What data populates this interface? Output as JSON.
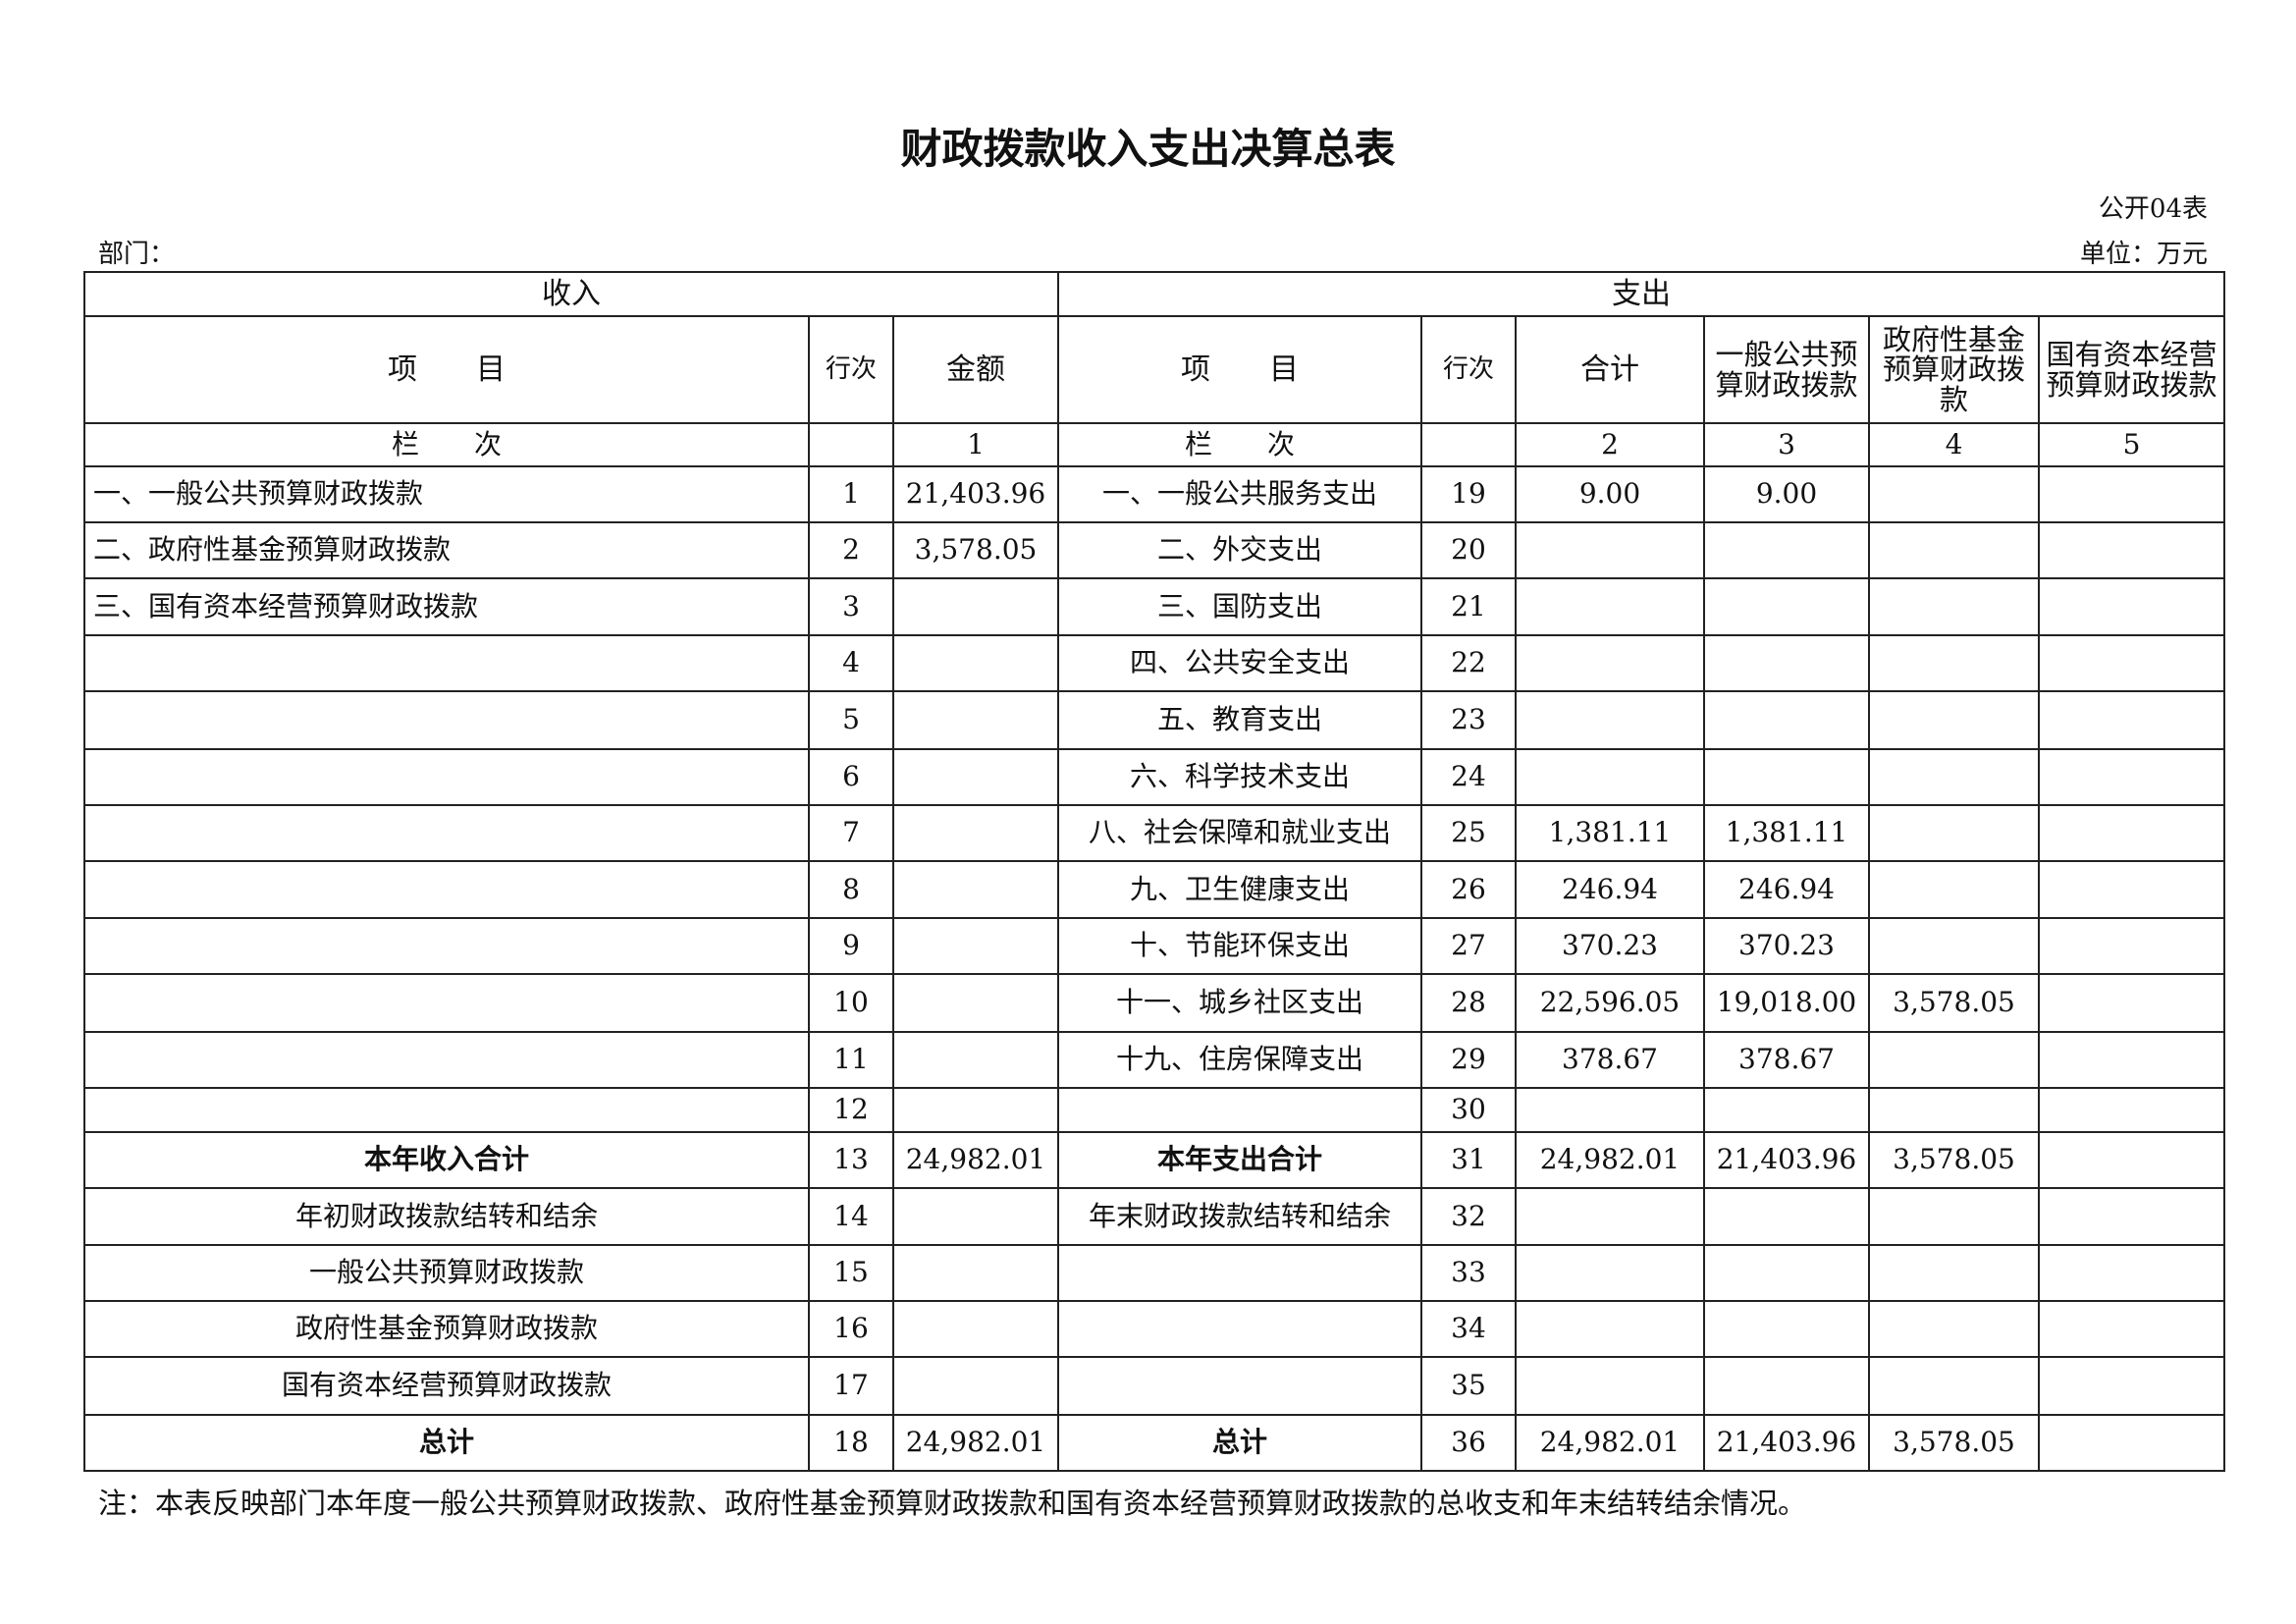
{
  "title": "财政拨款收入支出决算总表",
  "form_no": "公开04表",
  "dept_label": "部门：",
  "unit_label": "单位：万元",
  "header": {
    "income": "收入",
    "expense": "支出",
    "item": "项　　目",
    "row_no": "行次",
    "amount": "金额",
    "total": "合计",
    "general": "一般公共预算财政拨款",
    "gov_fund": "政府性基金预算财政拨款",
    "state_capital": "国有资本经营预算财政拨款",
    "col_label": "栏　　次",
    "col1": "1",
    "col2": "2",
    "col3": "3",
    "col4": "4",
    "col5": "5"
  },
  "rows": [
    {
      "in_item": "一、一般公共预算财政拨款",
      "in_no": "1",
      "in_amt": "21,403.96",
      "ex_item": "一、一般公共服务支出",
      "ex_no": "19",
      "total": "9.00",
      "general": "9.00",
      "gov": "",
      "cap": ""
    },
    {
      "in_item": "二、政府性基金预算财政拨款",
      "in_no": "2",
      "in_amt": "3,578.05",
      "ex_item": "二、外交支出",
      "ex_no": "20",
      "total": "",
      "general": "",
      "gov": "",
      "cap": ""
    },
    {
      "in_item": "三、国有资本经营预算财政拨款",
      "in_no": "3",
      "in_amt": "",
      "ex_item": "三、国防支出",
      "ex_no": "21",
      "total": "",
      "general": "",
      "gov": "",
      "cap": ""
    },
    {
      "in_item": "",
      "in_no": "4",
      "in_amt": "",
      "ex_item": "四、公共安全支出",
      "ex_no": "22",
      "total": "",
      "general": "",
      "gov": "",
      "cap": ""
    },
    {
      "in_item": "",
      "in_no": "5",
      "in_amt": "",
      "ex_item": "五、教育支出",
      "ex_no": "23",
      "total": "",
      "general": "",
      "gov": "",
      "cap": ""
    },
    {
      "in_item": "",
      "in_no": "6",
      "in_amt": "",
      "ex_item": "六、科学技术支出",
      "ex_no": "24",
      "total": "",
      "general": "",
      "gov": "",
      "cap": ""
    },
    {
      "in_item": "",
      "in_no": "7",
      "in_amt": "",
      "ex_item": "八、社会保障和就业支出",
      "ex_no": "25",
      "total": "1,381.11",
      "general": "1,381.11",
      "gov": "",
      "cap": ""
    },
    {
      "in_item": "",
      "in_no": "8",
      "in_amt": "",
      "ex_item": "九、卫生健康支出",
      "ex_no": "26",
      "total": "246.94",
      "general": "246.94",
      "gov": "",
      "cap": ""
    },
    {
      "in_item": "",
      "in_no": "9",
      "in_amt": "",
      "ex_item": "十、节能环保支出",
      "ex_no": "27",
      "total": "370.23",
      "general": "370.23",
      "gov": "",
      "cap": ""
    },
    {
      "in_item": "",
      "in_no": "10",
      "in_amt": "",
      "ex_item": "十一、城乡社区支出",
      "ex_no": "28",
      "total": "22,596.05",
      "general": "19,018.00",
      "gov": "3,578.05",
      "cap": ""
    },
    {
      "in_item": "",
      "in_no": "11",
      "in_amt": "",
      "ex_item": "十九、住房保障支出",
      "ex_no": "29",
      "total": "378.67",
      "general": "378.67",
      "gov": "",
      "cap": ""
    },
    {
      "in_item": "",
      "in_no": "12",
      "in_amt": "",
      "ex_item": "",
      "ex_no": "30",
      "total": "",
      "general": "",
      "gov": "",
      "cap": ""
    },
    {
      "in_item": "本年收入合计",
      "in_no": "13",
      "in_amt": "24,982.01",
      "ex_item": "本年支出合计",
      "ex_no": "31",
      "total": "24,982.01",
      "general": "21,403.96",
      "gov": "3,578.05",
      "cap": ""
    },
    {
      "in_item": "年初财政拨款结转和结余",
      "in_no": "14",
      "in_amt": "",
      "ex_item": "年末财政拨款结转和结余",
      "ex_no": "32",
      "total": "",
      "general": "",
      "gov": "",
      "cap": ""
    },
    {
      "in_item": "一般公共预算财政拨款",
      "in_no": "15",
      "in_amt": "",
      "ex_item": "",
      "ex_no": "33",
      "total": "",
      "general": "",
      "gov": "",
      "cap": ""
    },
    {
      "in_item": "政府性基金预算财政拨款",
      "in_no": "16",
      "in_amt": "",
      "ex_item": "",
      "ex_no": "34",
      "total": "",
      "general": "",
      "gov": "",
      "cap": ""
    },
    {
      "in_item": "国有资本经营预算财政拨款",
      "in_no": "17",
      "in_amt": "",
      "ex_item": "",
      "ex_no": "35",
      "total": "",
      "general": "",
      "gov": "",
      "cap": ""
    },
    {
      "in_item": "总计",
      "in_no": "18",
      "in_amt": "24,982.01",
      "ex_item": "总计",
      "ex_no": "36",
      "total": "24,982.01",
      "general": "21,403.96",
      "gov": "3,578.05",
      "cap": ""
    }
  ],
  "note": "注：本表反映部门本年度一般公共预算财政拨款、政府性基金预算财政拨款和国有资本经营预算财政拨款的总收支和年末结转结余情况。"
}
